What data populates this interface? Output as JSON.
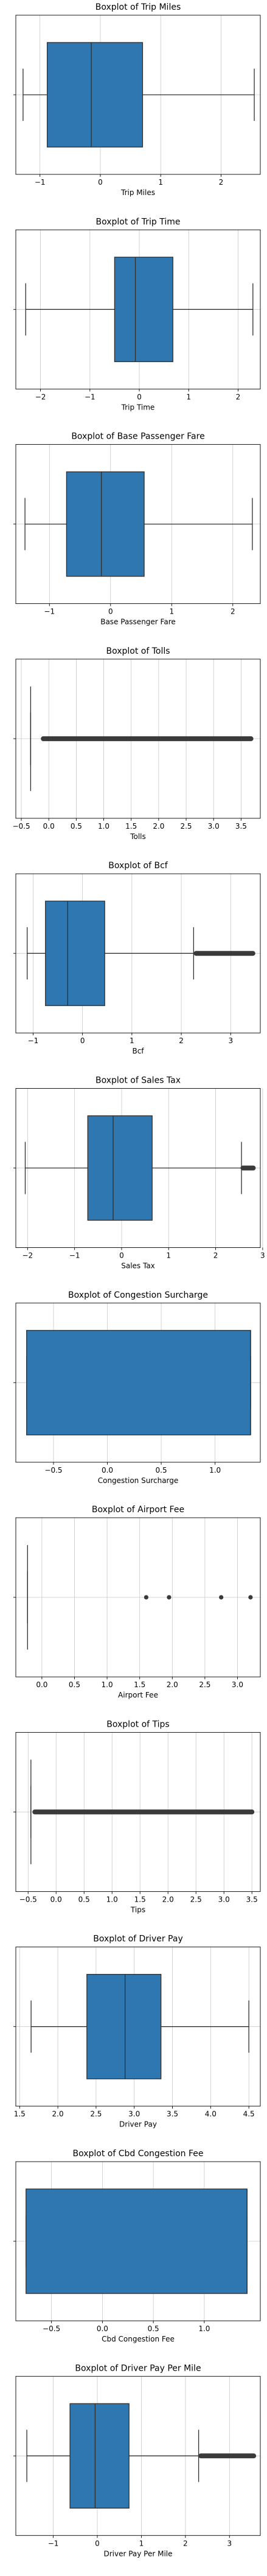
{
  "colors": {
    "box_fill": "#2f77b0",
    "box_edge": "#2e2e2e",
    "grid": "#c8c8c8",
    "axis": "#000000",
    "outlier": "#3a3a3a",
    "background": "#ffffff"
  },
  "chart_data": [
    {
      "type": "boxplot",
      "title": "Boxplot of Trip Miles",
      "xlabel": "Trip Miles",
      "xlim": [
        -1.4,
        2.65
      ],
      "xticks": [
        -1,
        0,
        1,
        2
      ],
      "xtick_labels": [
        "−1",
        "0",
        "1",
        "2"
      ],
      "grid": true,
      "box": {
        "whisker_low": -1.28,
        "q1": -0.88,
        "median": -0.15,
        "q3": 0.7,
        "whisker_high": 2.55
      },
      "outliers": []
    },
    {
      "type": "boxplot",
      "title": "Boxplot of Trip Time",
      "xlabel": "Trip Time",
      "xlim": [
        -2.5,
        2.45
      ],
      "xticks": [
        -2,
        -1,
        0,
        1,
        2
      ],
      "xtick_labels": [
        "−2",
        "−1",
        "0",
        "1",
        "2"
      ],
      "grid": true,
      "box": {
        "whisker_low": -2.3,
        "q1": -0.5,
        "median": -0.08,
        "q3": 0.68,
        "whisker_high": 2.3
      },
      "outliers": []
    },
    {
      "type": "boxplot",
      "title": "Boxplot of Base Passenger Fare",
      "xlabel": "Base Passenger Fare",
      "xlim": [
        -1.55,
        2.45
      ],
      "xticks": [
        -1,
        0,
        1,
        2
      ],
      "xtick_labels": [
        "−1",
        "0",
        "1",
        "2"
      ],
      "grid": true,
      "box": {
        "whisker_low": -1.4,
        "q1": -0.72,
        "median": -0.15,
        "q3": 0.55,
        "whisker_high": 2.32
      },
      "outliers": []
    },
    {
      "type": "boxplot",
      "title": "Boxplot of Tolls",
      "xlabel": "Tolls",
      "xlim": [
        -0.6,
        3.85
      ],
      "xticks": [
        -0.5,
        0.0,
        0.5,
        1.0,
        1.5,
        2.0,
        2.5,
        3.0,
        3.5
      ],
      "xtick_labels": [
        "−0.5",
        "0.0",
        "0.5",
        "1.0",
        "1.5",
        "2.0",
        "2.5",
        "3.0",
        "3.5"
      ],
      "grid": true,
      "box": {
        "whisker_low": -0.33,
        "q1": -0.33,
        "median": -0.33,
        "q3": -0.33,
        "whisker_high": -0.33
      },
      "outliers": [
        {
          "range": [
            -0.1,
            3.68
          ]
        }
      ]
    },
    {
      "type": "boxplot",
      "title": "Boxplot of Bcf",
      "xlabel": "Bcf",
      "xlim": [
        -1.35,
        3.6
      ],
      "xticks": [
        -1,
        0,
        1,
        2,
        3
      ],
      "xtick_labels": [
        "−1",
        "0",
        "1",
        "2",
        "3"
      ],
      "grid": true,
      "box": {
        "whisker_low": -1.12,
        "q1": -0.75,
        "median": -0.3,
        "q3": 0.45,
        "whisker_high": 2.25
      },
      "outliers": [
        {
          "range": [
            2.3,
            3.45
          ]
        }
      ]
    },
    {
      "type": "boxplot",
      "title": "Boxplot of Sales Tax",
      "xlabel": "Sales Tax",
      "xlim": [
        -2.25,
        2.95
      ],
      "xticks": [
        -2,
        -1,
        0,
        1,
        2,
        3
      ],
      "xtick_labels": [
        "−2",
        "−1",
        "0",
        "1",
        "2",
        "3"
      ],
      "grid": true,
      "box": {
        "whisker_low": -2.05,
        "q1": -0.72,
        "median": -0.18,
        "q3": 0.65,
        "whisker_high": 2.55
      },
      "outliers": [
        {
          "range": [
            2.58,
            2.8
          ]
        }
      ]
    },
    {
      "type": "boxplot",
      "title": "Boxplot of Congestion Surcharge",
      "xlabel": "Congestion Surcharge",
      "xlim": [
        -0.85,
        1.42
      ],
      "xticks": [
        -0.5,
        0.0,
        0.5,
        1.0
      ],
      "xtick_labels": [
        "−0.5",
        "0.0",
        "0.5",
        "1.0"
      ],
      "grid": true,
      "box": {
        "whisker_low": -0.75,
        "q1": -0.75,
        "median": 1.33,
        "q3": 1.33,
        "whisker_high": 1.33
      },
      "outliers": []
    },
    {
      "type": "boxplot",
      "title": "Boxplot of Airport Fee",
      "xlabel": "Airport Fee",
      "xlim": [
        -0.4,
        3.35
      ],
      "xticks": [
        0.0,
        0.5,
        1.0,
        1.5,
        2.0,
        2.5,
        3.0
      ],
      "xtick_labels": [
        "0.0",
        "0.5",
        "1.0",
        "1.5",
        "2.0",
        "2.5",
        "3.0"
      ],
      "grid": true,
      "box": {
        "whisker_low": -0.22,
        "q1": -0.22,
        "median": -0.22,
        "q3": -0.22,
        "whisker_high": -0.22
      },
      "outliers": [
        {
          "values": [
            1.6,
            1.95,
            2.75,
            3.2
          ]
        }
      ]
    },
    {
      "type": "boxplot",
      "title": "Boxplot of Tips",
      "xlabel": "Tips",
      "xlim": [
        -0.72,
        3.65
      ],
      "xticks": [
        -0.5,
        0.0,
        0.5,
        1.0,
        1.5,
        2.0,
        2.5,
        3.0,
        3.5
      ],
      "xtick_labels": [
        "−0.5",
        "0.0",
        "0.5",
        "1.0",
        "1.5",
        "2.0",
        "2.5",
        "3.0",
        "3.5"
      ],
      "grid": true,
      "box": {
        "whisker_low": -0.45,
        "q1": -0.45,
        "median": -0.45,
        "q3": -0.45,
        "whisker_high": -0.45
      },
      "outliers": [
        {
          "range": [
            -0.38,
            3.5
          ]
        }
      ]
    },
    {
      "type": "boxplot",
      "title": "Boxplot of Driver Pay",
      "xlabel": "Driver Pay",
      "xlim": [
        1.45,
        4.65
      ],
      "xticks": [
        1.5,
        2.0,
        2.5,
        3.0,
        3.5,
        4.0,
        4.5
      ],
      "xtick_labels": [
        "1.5",
        "2.0",
        "2.5",
        "3.0",
        "3.5",
        "4.0",
        "4.5"
      ],
      "grid": true,
      "box": {
        "whisker_low": 1.65,
        "q1": 2.38,
        "median": 2.88,
        "q3": 3.35,
        "whisker_high": 4.5
      },
      "outliers": []
    },
    {
      "type": "boxplot",
      "title": "Boxplot of Cbd Congestion Fee",
      "xlabel": "Cbd Congestion Fee",
      "xlim": [
        -0.85,
        1.55
      ],
      "xticks": [
        -0.5,
        0.0,
        0.5,
        1.0
      ],
      "xtick_labels": [
        "−0.5",
        "0.0",
        "0.5",
        "1.0"
      ],
      "grid": true,
      "box": {
        "whisker_low": -0.75,
        "q1": -0.75,
        "median": 1.42,
        "q3": 1.42,
        "whisker_high": 1.42
      },
      "outliers": []
    },
    {
      "type": "boxplot",
      "title": "Boxplot of Driver Pay Per Mile",
      "xlabel": "Driver Pay Per Mile",
      "xlim": [
        -1.85,
        3.7
      ],
      "xticks": [
        -1,
        0,
        1,
        2,
        3
      ],
      "xtick_labels": [
        "−1",
        "0",
        "1",
        "2",
        "3"
      ],
      "grid": true,
      "box": {
        "whisker_low": -1.6,
        "q1": -0.62,
        "median": -0.05,
        "q3": 0.72,
        "whisker_high": 2.3
      },
      "outliers": [
        {
          "range": [
            2.35,
            3.55
          ]
        }
      ]
    }
  ]
}
